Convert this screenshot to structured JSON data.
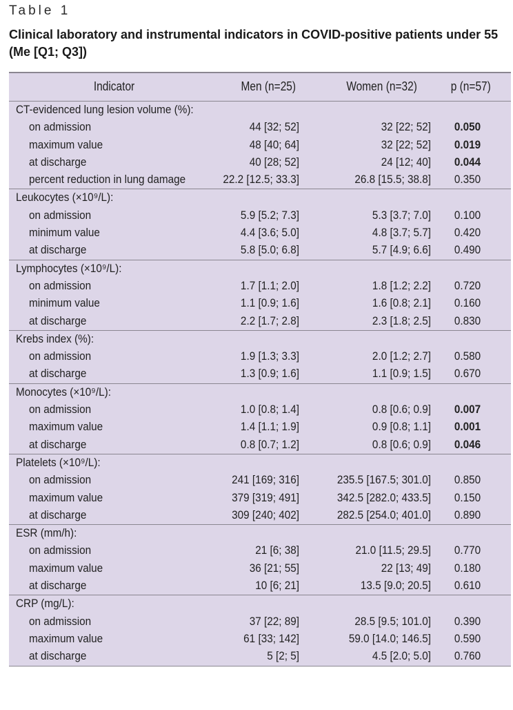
{
  "caption": {
    "label": "Table 1",
    "title": "Clinical laboratory and instrumental indicators in COVID-positive patients under 55 (Me [Q1; Q3])"
  },
  "headers": [
    "Indicator",
    "Men (n=25)",
    "Women (n=32)",
    "p (n=57)"
  ],
  "groups": [
    {
      "title": "CT-evidenced lung lesion volume (%):",
      "rows": [
        {
          "label": "on admission",
          "men": "44 [32; 52]",
          "women": "32 [22; 52]",
          "p": "0.050",
          "bold": true
        },
        {
          "label": "maximum value",
          "men": "48 [40; 64]",
          "women": "32 [22; 52]",
          "p": "0.019",
          "bold": true
        },
        {
          "label": "at discharge",
          "men": "40 [28; 52]",
          "women": "24 [12; 40]",
          "p": "0.044",
          "bold": true
        },
        {
          "label": "percent reduction in lung damage",
          "men": "22.2 [12.5; 33.3]",
          "women": "26.8 [15.5; 38.8]",
          "p": "0.350",
          "bold": false
        }
      ]
    },
    {
      "title": "Leukocytes (×10⁹/L):",
      "rows": [
        {
          "label": "on admission",
          "men": "5.9 [5.2; 7.3]",
          "women": "5.3 [3.7; 7.0]",
          "p": "0.100",
          "bold": false
        },
        {
          "label": "minimum value",
          "men": "4.4 [3.6; 5.0]",
          "women": "4.8 [3.7; 5.7]",
          "p": "0.420",
          "bold": false
        },
        {
          "label": "at discharge",
          "men": "5.8 [5.0; 6.8]",
          "women": "5.7 [4.9; 6.6]",
          "p": "0.490",
          "bold": false
        }
      ]
    },
    {
      "title": "Lymphocytes (×10⁹/L):",
      "rows": [
        {
          "label": "on admission",
          "men": "1.7 [1.1; 2.0]",
          "women": "1.8 [1.2; 2.2]",
          "p": "0.720",
          "bold": false
        },
        {
          "label": "minimum value",
          "men": "1.1 [0.9; 1.6]",
          "women": "1.6 [0.8; 2.1]",
          "p": "0.160",
          "bold": false
        },
        {
          "label": "at discharge",
          "men": "2.2 [1.7; 2.8]",
          "women": "2.3 [1.8; 2.5]",
          "p": "0.830",
          "bold": false
        }
      ]
    },
    {
      "title": "Krebs index (%):",
      "rows": [
        {
          "label": "on admission",
          "men": "1.9 [1.3; 3.3]",
          "women": "2.0 [1.2; 2.7]",
          "p": "0.580",
          "bold": false
        },
        {
          "label": "at discharge",
          "men": "1.3 [0.9; 1.6]",
          "women": "1.1 [0.9; 1.5]",
          "p": "0.670",
          "bold": false
        }
      ]
    },
    {
      "title": "Monocytes (×10⁹/L):",
      "rows": [
        {
          "label": "on admission",
          "men": "1.0 [0.8; 1.4]",
          "women": "0.8 [0.6; 0.9]",
          "p": "0.007",
          "bold": true
        },
        {
          "label": "maximum value",
          "men": "1.4 [1.1; 1.9]",
          "women": "0.9 [0.8; 1.1]",
          "p": "0.001",
          "bold": true
        },
        {
          "label": "at discharge",
          "men": "0.8 [0.7; 1.2]",
          "women": "0.8 [0.6; 0.9]",
          "p": "0.046",
          "bold": true
        }
      ]
    },
    {
      "title": "Platelets (×10⁹/L):",
      "rows": [
        {
          "label": "on admission",
          "men": "241 [169; 316]",
          "women": "235.5 [167.5; 301.0]",
          "p": "0.850",
          "bold": false
        },
        {
          "label": "maximum value",
          "men": "379 [319; 491]",
          "women": "342.5 [282.0; 433.5]",
          "p": "0.150",
          "bold": false
        },
        {
          "label": "at discharge",
          "men": "309 [240; 402]",
          "women": "282.5 [254.0; 401.0]",
          "p": "0.890",
          "bold": false
        }
      ]
    },
    {
      "title": "ESR (mm/h):",
      "rows": [
        {
          "label": "on admission",
          "men": "21 [6; 38]",
          "women": "21.0 [11.5; 29.5]",
          "p": "0.770",
          "bold": false
        },
        {
          "label": "maximum value",
          "men": "36 [21; 55]",
          "women": "22 [13; 49]",
          "p": "0.180",
          "bold": false
        },
        {
          "label": "at discharge",
          "men": "10 [6; 21]",
          "women": "13.5 [9.0; 20.5]",
          "p": "0.610",
          "bold": false
        }
      ]
    },
    {
      "title": "CRP (mg/L):",
      "rows": [
        {
          "label": "on admission",
          "men": "37 [22; 89]",
          "women": "28.5 [9.5; 101.0]",
          "p": "0.390",
          "bold": false
        },
        {
          "label": "maximum value",
          "men": "61 [33; 142]",
          "women": "59.0 [14.0; 146.5]",
          "p": "0.590",
          "bold": false
        },
        {
          "label": "at discharge",
          "men": "5 [2; 5]",
          "women": "4.5 [2.0; 5.0]",
          "p": "0.760",
          "bold": false
        }
      ]
    }
  ]
}
